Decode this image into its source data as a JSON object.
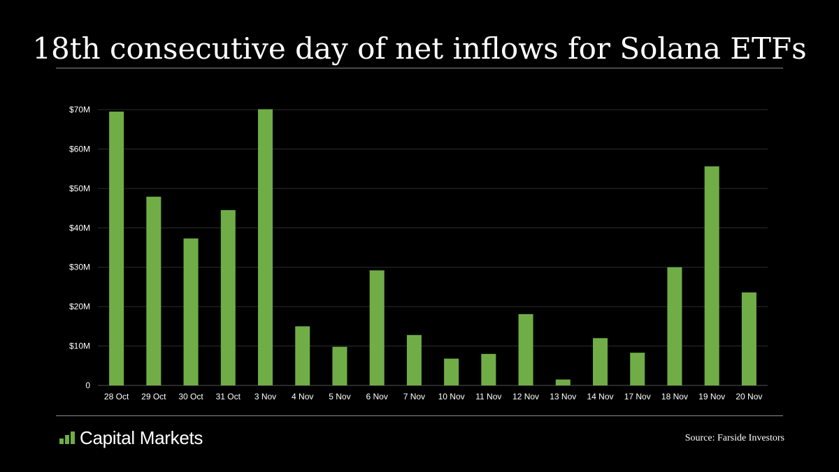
{
  "title": "18th consecutive day of net inflows for Solana ETFs",
  "brand": {
    "name": "Capital Markets",
    "accent": "#70ad47"
  },
  "source": "Source: Farside Investors",
  "chart_data": {
    "type": "bar",
    "title": "18th consecutive day of net inflows for Solana ETFs",
    "xlabel": "",
    "ylabel": "",
    "unit": "$M",
    "categories": [
      "28 Oct",
      "29 Oct",
      "30 Oct",
      "31 Oct",
      "3 Nov",
      "4 Nov",
      "5 Nov",
      "6 Nov",
      "7 Nov",
      "10 Nov",
      "11 Nov",
      "12 Nov",
      "13 Nov",
      "14 Nov",
      "17 Nov",
      "18 Nov",
      "19 Nov",
      "20 Nov"
    ],
    "values": [
      69.5,
      47.9,
      37.3,
      44.5,
      70.1,
      15.0,
      9.8,
      29.2,
      12.8,
      6.8,
      8.0,
      18.1,
      1.5,
      12.0,
      8.3,
      30.0,
      55.6,
      23.6
    ],
    "ylim": [
      0,
      70
    ],
    "yticks": [
      0,
      10,
      20,
      30,
      40,
      50,
      60,
      70
    ],
    "ytick_labels": [
      "0",
      "$10M",
      "$20M",
      "$30M",
      "$40M",
      "$50M",
      "$60M",
      "$70M"
    ],
    "grid": true,
    "bar_color": "#70ad47",
    "grid_color": "#2e2e2e"
  }
}
